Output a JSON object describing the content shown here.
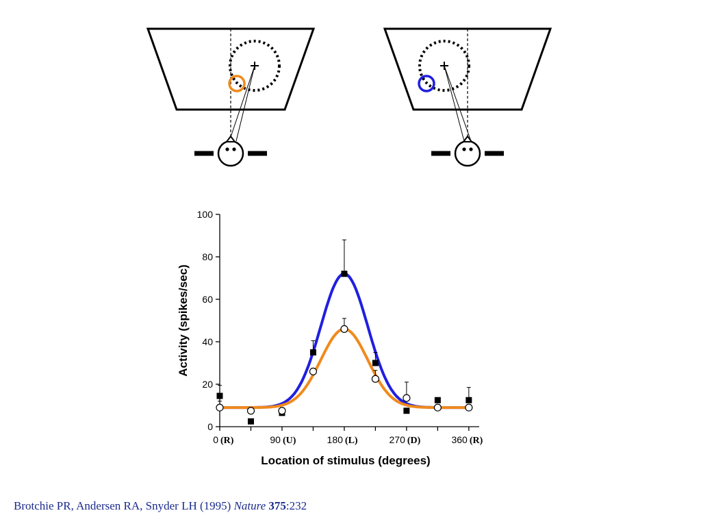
{
  "colors": {
    "blue_curve": "#1f1fe0",
    "orange_curve": "#f08a1c",
    "citation": "#1a2a8c",
    "ink": "#000000"
  },
  "diagrams": [
    {
      "name": "left-gaze",
      "stimulus_color": "orange",
      "fixation_dashed_ring": true
    },
    {
      "name": "right-gaze",
      "stimulus_color": "blue",
      "fixation_dashed_ring": true
    }
  ],
  "chart_data": {
    "type": "line",
    "xlabel": "Location of stimulus (degrees)",
    "ylabel": "Activity (spikes/sec)",
    "xlim": [
      0,
      375
    ],
    "ylim": [
      0,
      100
    ],
    "x_ticks": [
      {
        "value": 0,
        "label": "0",
        "dir": "(R)"
      },
      {
        "value": 90,
        "label": "90",
        "dir": "(U)"
      },
      {
        "value": 180,
        "label": "180",
        "dir": "(L)"
      },
      {
        "value": 270,
        "label": "270",
        "dir": "(D)"
      },
      {
        "value": 360,
        "label": "360",
        "dir": "(R)"
      }
    ],
    "y_ticks": [
      0,
      20,
      40,
      60,
      80,
      100
    ],
    "series": [
      {
        "marker": "filled-square",
        "curve_color": "blue",
        "x": [
          0,
          45,
          90,
          135,
          180,
          225,
          270,
          315,
          360
        ],
        "y": [
          14.5,
          2.5,
          6.5,
          35,
          72,
          30,
          7.5,
          12.5,
          12.5
        ],
        "err": [
          5,
          0,
          0,
          5.5,
          16,
          5,
          0,
          0,
          6
        ],
        "fit": {
          "baseline": 9,
          "amplitude": 63,
          "center": 180,
          "sigma": 34
        }
      },
      {
        "marker": "open-circle",
        "curve_color": "orange",
        "x": [
          0,
          45,
          90,
          135,
          180,
          225,
          270,
          315,
          360
        ],
        "y": [
          9,
          7.5,
          7.5,
          26,
          46,
          22.5,
          13.5,
          9,
          9
        ],
        "err": [
          3,
          0,
          0,
          0,
          5,
          4,
          7.5,
          0,
          0
        ],
        "fit": {
          "baseline": 9,
          "amplitude": 37,
          "center": 180,
          "sigma": 34
        }
      }
    ]
  },
  "citation": {
    "authors": "Brotchie PR, Andersen RA, Snyder LH (1995) ",
    "journal": "Nature",
    "volume": "375",
    "pages": ":232"
  }
}
